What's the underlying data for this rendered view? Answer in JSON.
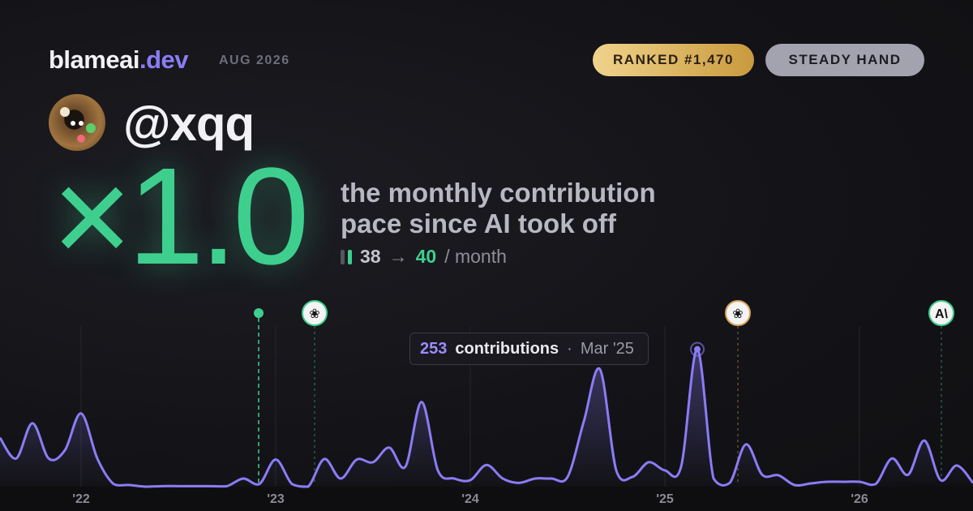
{
  "header": {
    "brand": "blameai",
    "brand_suffix": ".dev",
    "period": "AUG 2026",
    "rank": "RANKED #1,470",
    "title": "STEADY HAND",
    "handle": "@xqq"
  },
  "hero": {
    "multiplier": "×1.0",
    "caption": "the monthly contribution pace since AI took off",
    "before": 38,
    "arrow": "→",
    "after": 40,
    "unit": "/ month"
  },
  "chart_data": {
    "type": "line",
    "color": "#8b7cf6",
    "categories": [
      null,
      null,
      null,
      null,
      null,
      "'22",
      null,
      null,
      null,
      null,
      null,
      null,
      null,
      null,
      null,
      null,
      null,
      "'23",
      null,
      null,
      null,
      null,
      null,
      null,
      null,
      null,
      null,
      null,
      null,
      "'24",
      null,
      null,
      null,
      null,
      null,
      null,
      null,
      null,
      null,
      null,
      null,
      "'25",
      null,
      null,
      null,
      null,
      null,
      null,
      null,
      null,
      null,
      null,
      null,
      "'26",
      null,
      null,
      null,
      null,
      null,
      null,
      null
    ],
    "values": [
      90,
      52,
      117,
      52,
      67,
      135,
      52,
      5,
      3,
      0,
      1,
      1,
      1,
      1,
      1,
      15,
      5,
      50,
      5,
      0,
      51,
      15,
      50,
      45,
      72,
      37,
      156,
      30,
      15,
      12,
      40,
      15,
      7,
      15,
      15,
      18,
      120,
      216,
      30,
      18,
      45,
      30,
      37,
      253,
      15,
      7,
      78,
      22,
      21,
      3,
      6,
      9,
      9,
      9,
      5,
      52,
      22,
      85,
      12,
      39,
      7
    ],
    "ylim": [
      0,
      260
    ],
    "tooltip": {
      "unit": "contributions",
      "separator": "·",
      "label": "Mar '25",
      "index": 43
    }
  }
}
